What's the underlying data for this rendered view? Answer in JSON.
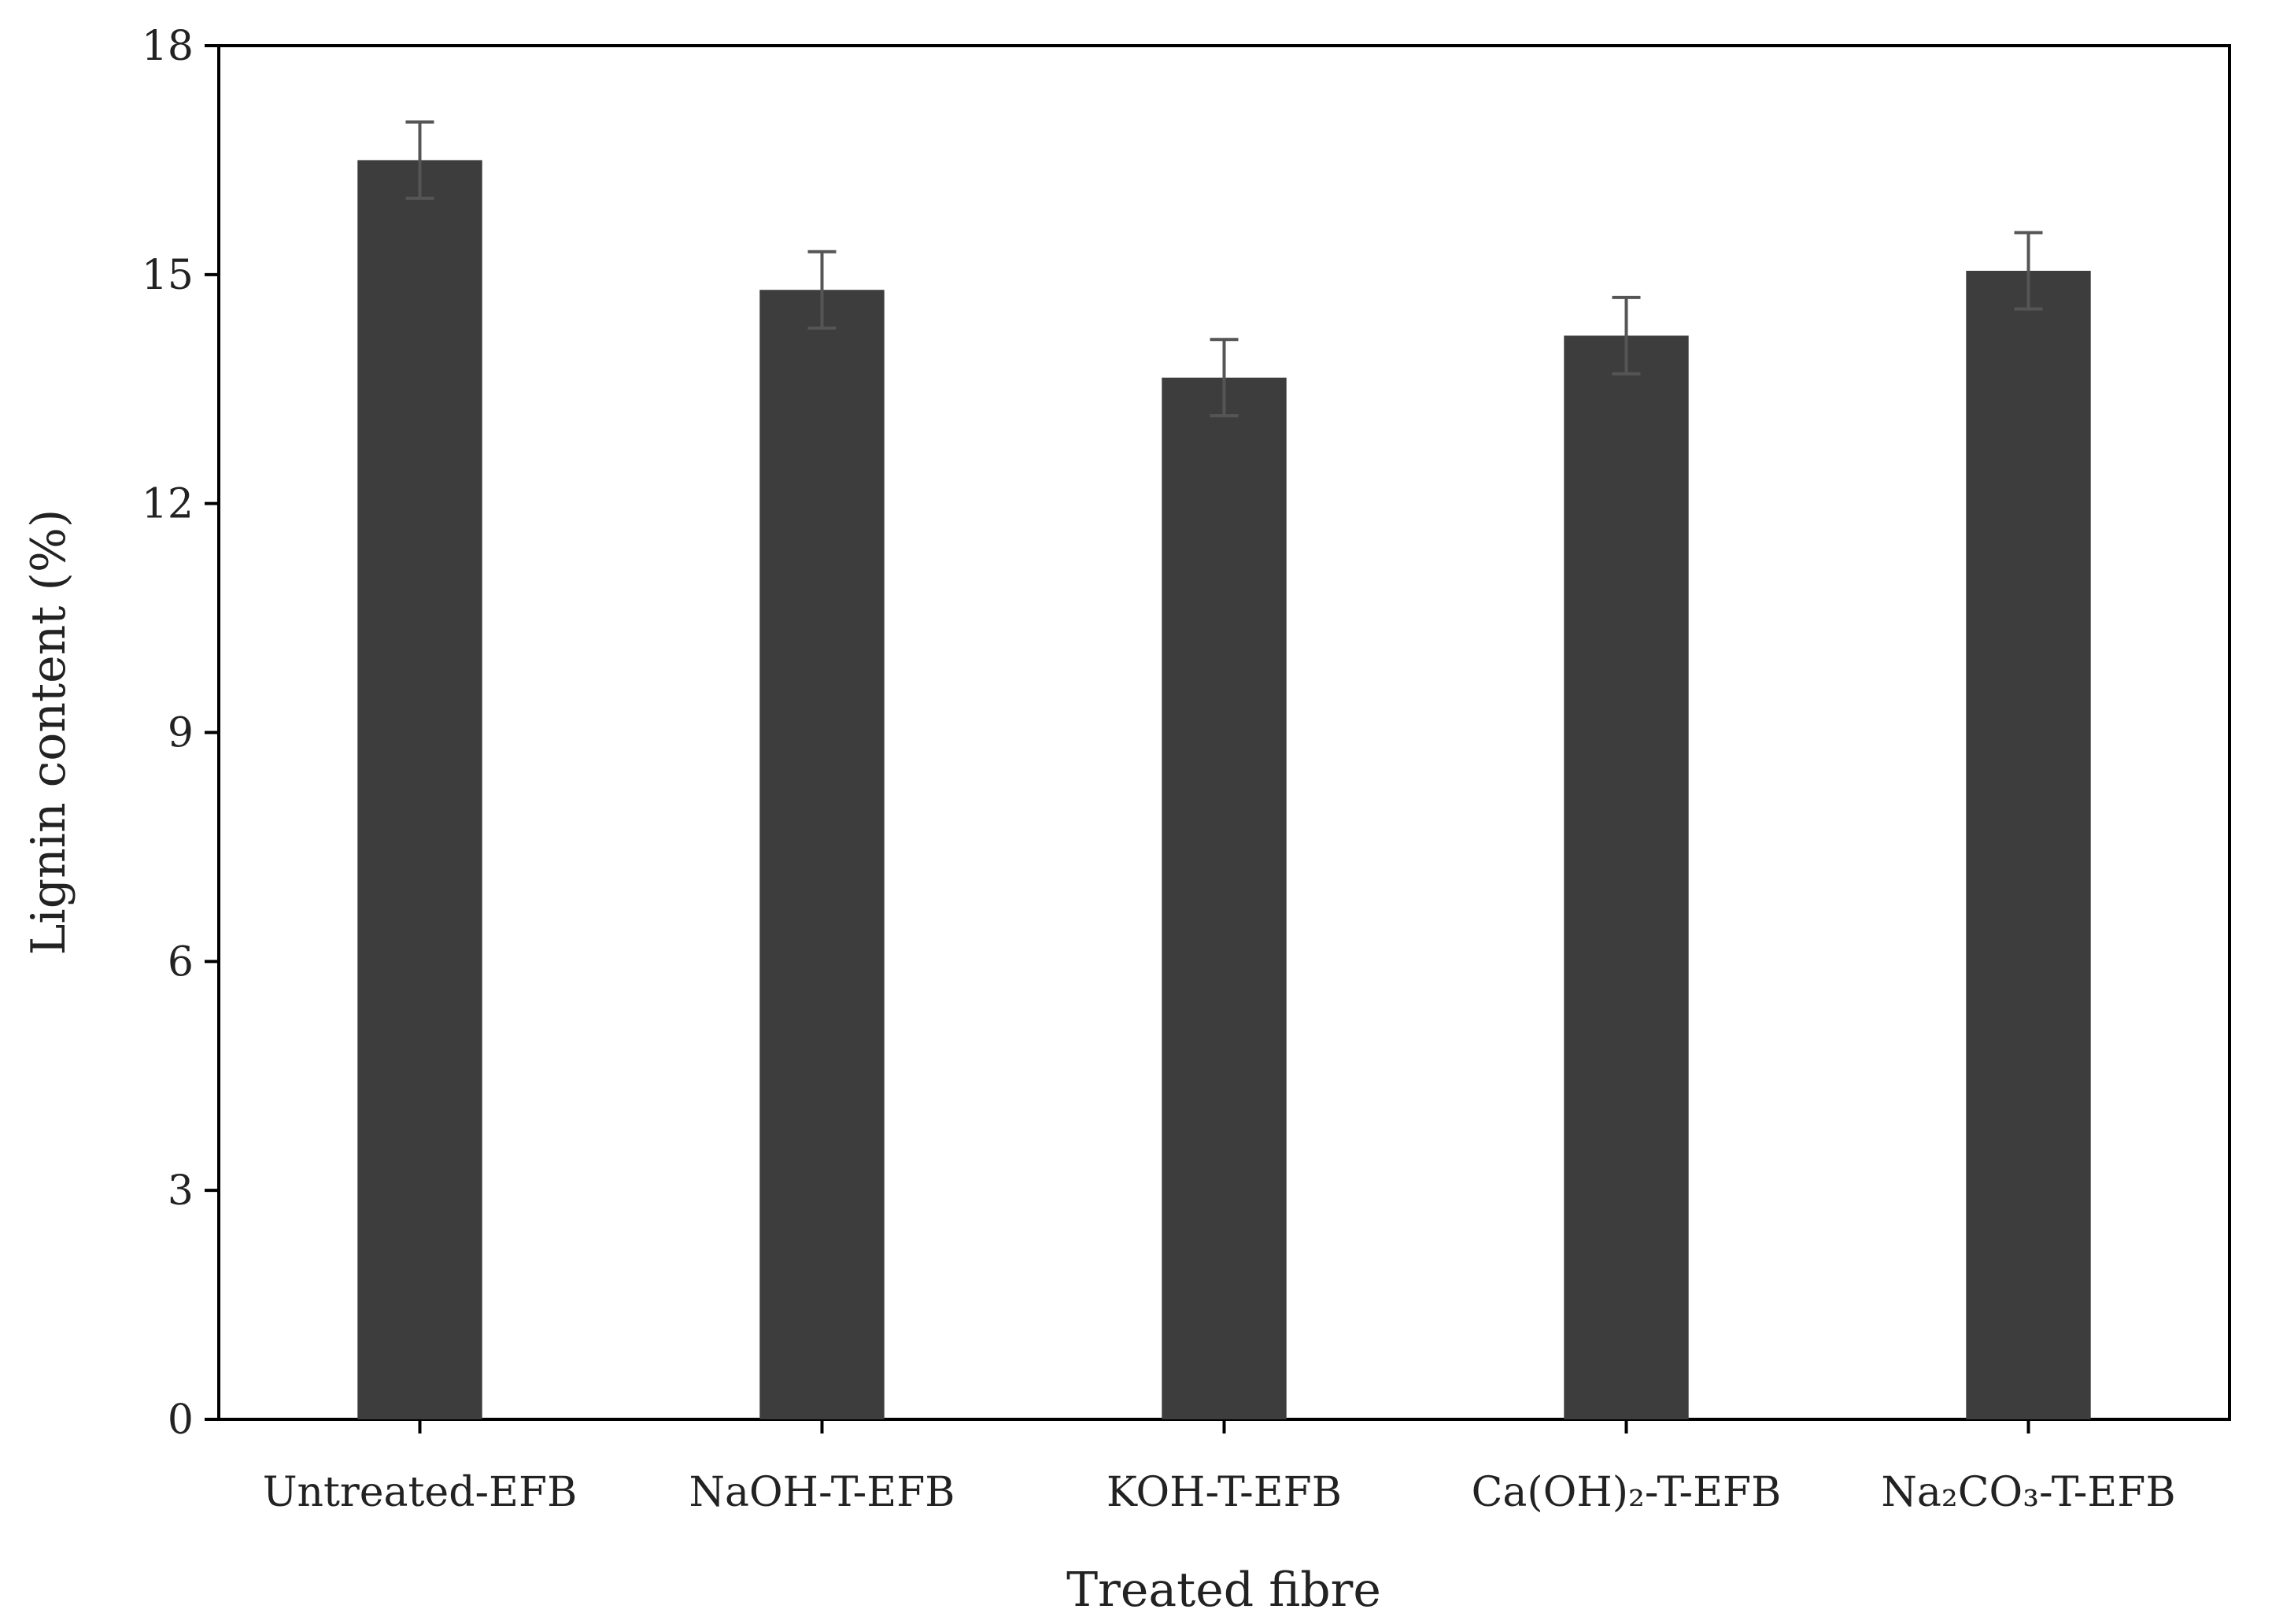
{
  "chart_data": {
    "type": "bar",
    "categories": [
      "Untreated-EFB",
      "NaOH-T-EFB",
      "KOH-T-EFB",
      "Ca(OH)₂-T-EFB",
      "Na₂CO₃-T-EFB"
    ],
    "values": [
      16.5,
      14.8,
      13.65,
      14.2,
      15.05
    ],
    "errors": [
      0.5,
      0.5,
      0.5,
      0.5,
      0.5
    ],
    "xlabel": "Treated fibre",
    "ylabel": "Lignin content (%)",
    "ylim": [
      0,
      18
    ],
    "yticks": [
      0,
      3,
      6,
      9,
      12,
      15,
      18
    ],
    "grid": false,
    "legend": "none",
    "bar_color": "#3d3d3d",
    "error_bar_color": "#555555",
    "axis_color": "#000000"
  }
}
